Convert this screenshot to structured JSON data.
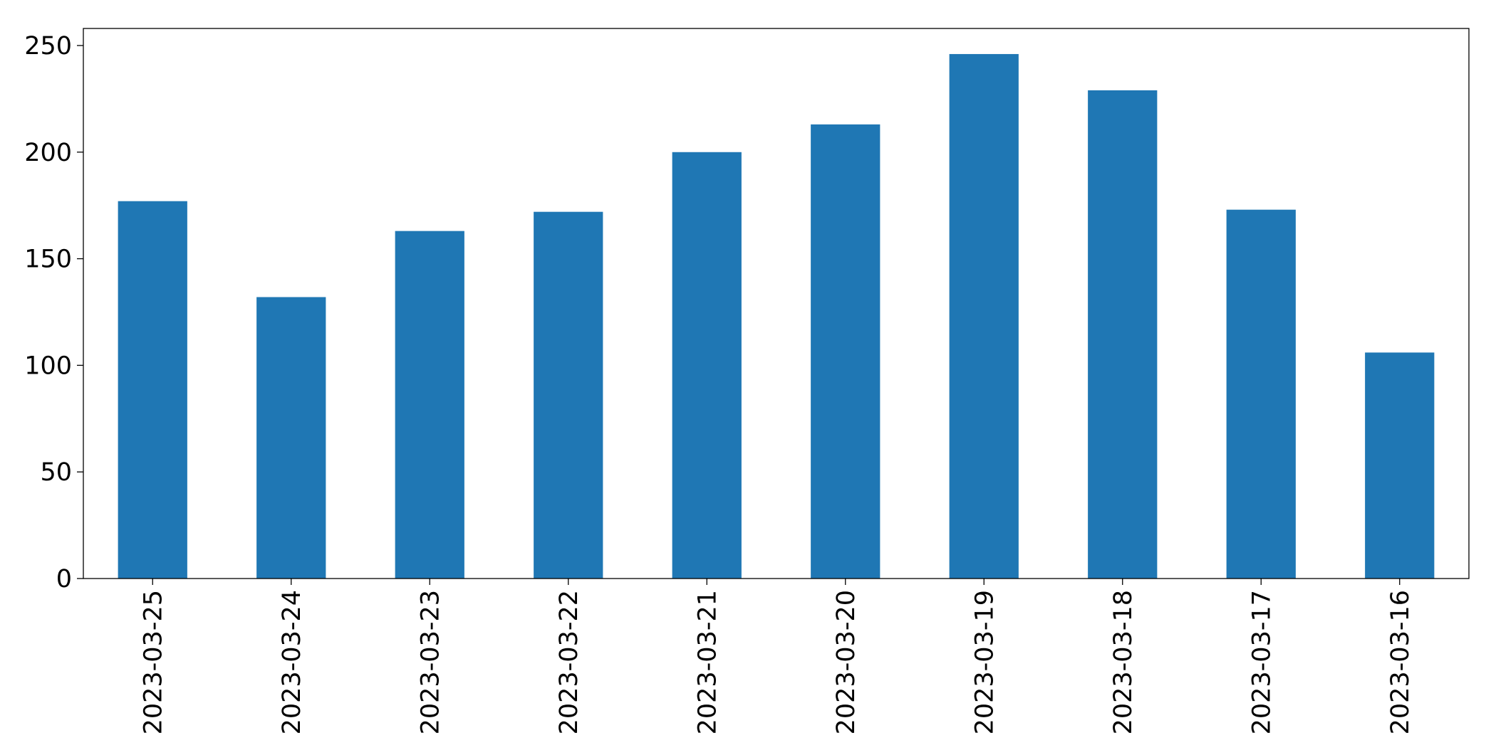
{
  "chart_data": {
    "type": "bar",
    "categories": [
      "2023-03-25",
      "2023-03-24",
      "2023-03-23",
      "2023-03-22",
      "2023-03-21",
      "2023-03-20",
      "2023-03-19",
      "2023-03-18",
      "2023-03-17",
      "2023-03-16"
    ],
    "values": [
      177,
      132,
      163,
      172,
      200,
      213,
      246,
      229,
      173,
      106
    ],
    "color": "#1f77b4",
    "ylim": [
      0,
      258
    ],
    "yticks": [
      0,
      50,
      100,
      150,
      200,
      250
    ],
    "grid": false
  }
}
